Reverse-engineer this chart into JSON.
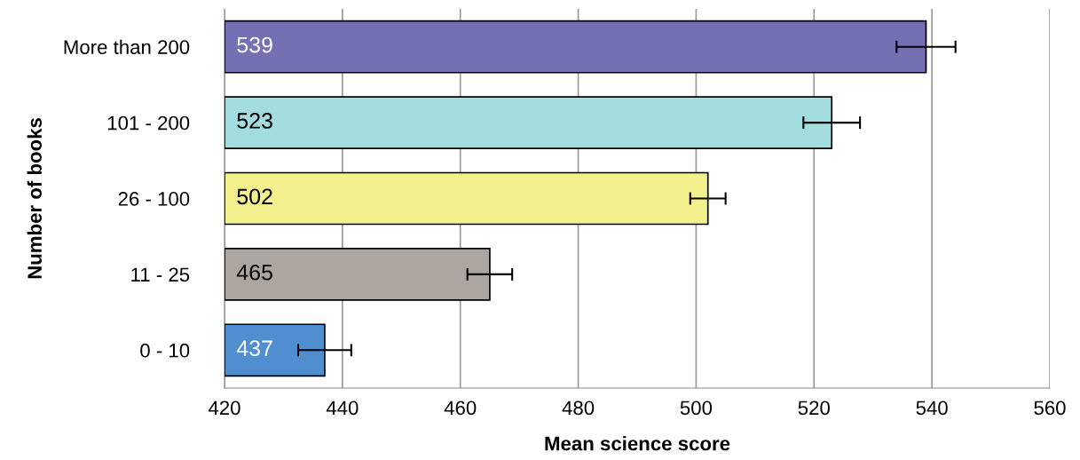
{
  "chart_data": {
    "type": "bar",
    "orientation": "horizontal",
    "categories": [
      "More than 200",
      "101 - 200",
      "26 - 100",
      "11 - 25",
      "0 - 10"
    ],
    "values": [
      539,
      523,
      502,
      465,
      437
    ],
    "errors": [
      5,
      4.8,
      3,
      3.8,
      4.5
    ],
    "colors": [
      "#7470b4",
      "#a3dde0",
      "#f3f08e",
      "#ada5a0",
      "#4f8fcf"
    ],
    "xlim": [
      420,
      560
    ],
    "xticks": [
      420,
      440,
      460,
      480,
      500,
      520,
      540,
      560
    ],
    "xlabel": "Mean science score",
    "ylabel": "Number of books",
    "grid": "x",
    "data_labels": true
  }
}
